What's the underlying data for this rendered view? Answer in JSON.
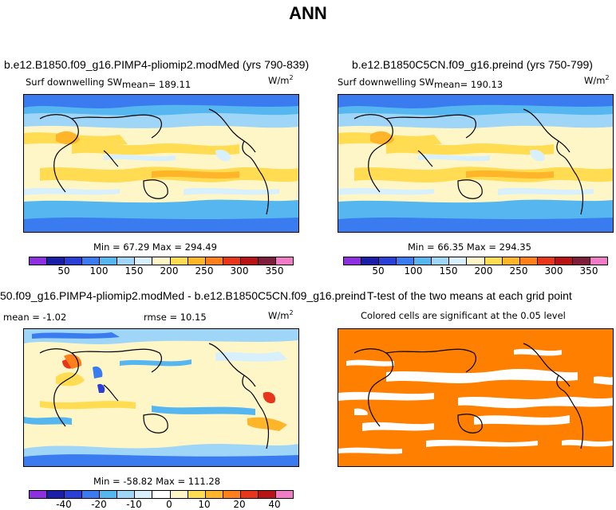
{
  "title": "ANN",
  "palette_mean": [
    "#8e2fe0",
    "#1b1fa8",
    "#2a3fd6",
    "#3a7cf0",
    "#56b6ef",
    "#9fd6f7",
    "#d8effc",
    "#fff6c8",
    "#ffdc52",
    "#ffb52a",
    "#ff7f1a",
    "#e8361c",
    "#b81416",
    "#7f1e3b",
    "#f07cc6"
  ],
  "palette_diff": [
    "#8e2fe0",
    "#1b1fa8",
    "#2a3fd6",
    "#3a7cf0",
    "#56b6ef",
    "#9fd6f7",
    "#d8effc",
    "#ffffff",
    "#fff6c8",
    "#ffdc52",
    "#ffb52a",
    "#ff7f1a",
    "#e8361c",
    "#b81416",
    "#f07cc6"
  ],
  "panels": [
    {
      "title": "b.e12.B1850.f09_g16.PIMP4-pliomip2.modMed (yrs 790-839)",
      "left_label": "Surf downwelling SW",
      "mean_label": "mean= 189.11",
      "units": "W/m",
      "units_sup": "2",
      "stats": "Min =  67.29 Max = 294.49",
      "tick_labels": [
        "50",
        "100",
        "150",
        "200",
        "250",
        "300",
        "350"
      ]
    },
    {
      "title": "b.e12.B1850C5CN.f09_g16.preind (yrs 750-799)",
      "left_label": "Surf downwelling SW",
      "mean_label": "mean= 190.13",
      "units": "W/m",
      "units_sup": "2",
      "stats": "Min =  66.35 Max = 294.35",
      "tick_labels": [
        "50",
        "100",
        "150",
        "200",
        "250",
        "300",
        "350"
      ]
    },
    {
      "title": "50.f09_g16.PIMP4-pliomip2.modMed - b.e12.B1850C5CN.f09_g16.preind",
      "mean_label": "mean =  -1.02",
      "rmse_label": "rmse =  10.15",
      "units": "W/m",
      "units_sup": "2",
      "stats": "Min = -58.82 Max = 111.28",
      "tick_labels": [
        "-40",
        "-20",
        "-10",
        "0",
        "10",
        "20",
        "40"
      ]
    },
    {
      "title": "T-test of the two means at each grid point",
      "subtitle": "Colored cells are significant at the 0.05 level",
      "fill_color": "#ff7f00"
    }
  ]
}
